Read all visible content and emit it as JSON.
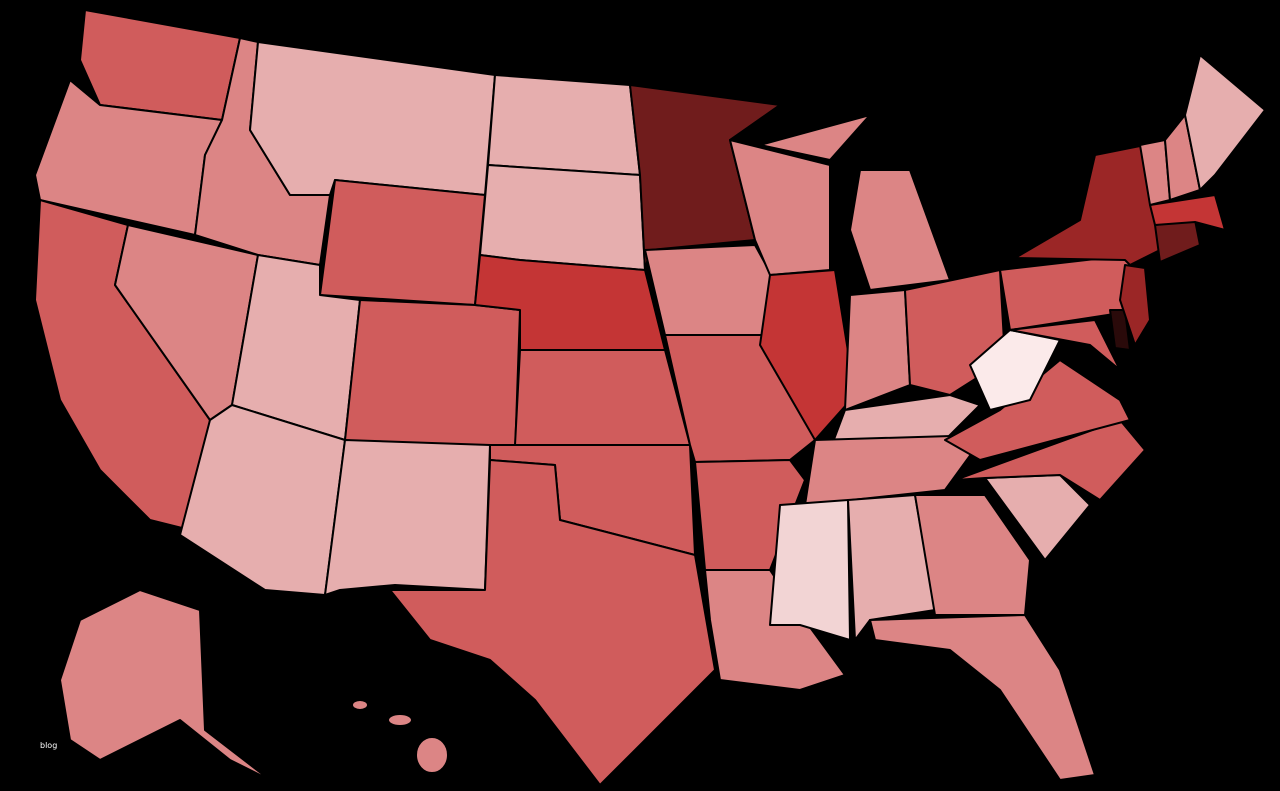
{
  "watermark": "blog"
}
